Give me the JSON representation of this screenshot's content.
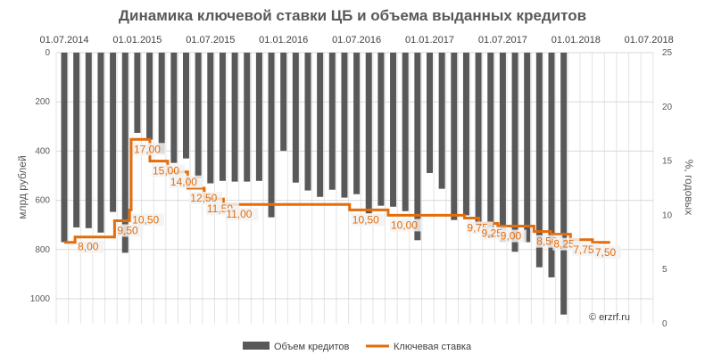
{
  "chart_data": {
    "type": "bar+line",
    "title": "Динамика ключевой ставки ЦБ и объема выданных кредитов",
    "x_ticks": [
      "01.07.2014",
      "01.01.2015",
      "01.07.2015",
      "01.01.2016",
      "01.07.2016",
      "01.01.2017",
      "01.07.2017",
      "01.01.2018",
      "01.07.2018"
    ],
    "xlim": [
      "2014-07-01",
      "2018-07-01"
    ],
    "left_axis": {
      "label": "млрд рублей",
      "ticks": [
        0,
        200,
        400,
        600,
        800,
        1000
      ],
      "ylim": [
        0,
        1100
      ],
      "reversed": true
    },
    "right_axis": {
      "label": "%, годовых",
      "ticks": [
        0,
        5,
        10,
        15,
        20,
        25
      ],
      "ylim": [
        0,
        25
      ]
    },
    "grid": true,
    "legend_position": "bottom",
    "series": [
      {
        "name": "Объем кредитов",
        "type": "bar",
        "color": "#595959",
        "start_month": "2014-07",
        "values": [
          770,
          710,
          713,
          731,
          647,
          813,
          326,
          354,
          409,
          448,
          430,
          511,
          531,
          521,
          524,
          524,
          521,
          669,
          399,
          528,
          560,
          586,
          557,
          589,
          575,
          653,
          622,
          626,
          644,
          762,
          489,
          553,
          680,
          661,
          703,
          752,
          769,
          809,
          770,
          872,
          913,
          1064
        ]
      },
      {
        "name": "Ключевая ставка",
        "type": "step-line",
        "color": "#E46C0A",
        "steps": [
          [
            "2014-07-01",
            7.5
          ],
          [
            "2014-07-28",
            8.0
          ],
          [
            "2014-11-05",
            9.5
          ],
          [
            "2014-12-12",
            10.5
          ],
          [
            "2014-12-16",
            17.0
          ],
          [
            "2015-02-02",
            15.0
          ],
          [
            "2015-03-16",
            14.0
          ],
          [
            "2015-05-05",
            12.5
          ],
          [
            "2015-06-16",
            11.5
          ],
          [
            "2015-08-03",
            11.0
          ],
          [
            "2016-06-14",
            10.5
          ],
          [
            "2016-09-19",
            10.0
          ],
          [
            "2017-03-27",
            9.75
          ],
          [
            "2017-05-02",
            9.25
          ],
          [
            "2017-06-19",
            9.0
          ],
          [
            "2017-09-18",
            8.5
          ],
          [
            "2017-10-30",
            8.25
          ],
          [
            "2017-12-18",
            7.75
          ],
          [
            "2018-02-12",
            7.5
          ]
        ],
        "end": "2018-03-26",
        "labels": [
          {
            "date": "2014-07-28",
            "value": 8.0,
            "text": "8,00"
          },
          {
            "date": "2014-11-05",
            "value": 9.5,
            "text": "9,50"
          },
          {
            "date": "2014-12-12",
            "value": 10.5,
            "text": "10,50"
          },
          {
            "date": "2014-12-16",
            "value": 17.0,
            "text": "17,00"
          },
          {
            "date": "2015-02-02",
            "value": 15.0,
            "text": "15,00"
          },
          {
            "date": "2015-03-16",
            "value": 14.0,
            "text": "14,00"
          },
          {
            "date": "2015-05-05",
            "value": 12.5,
            "text": "12,50"
          },
          {
            "date": "2015-06-16",
            "value": 11.5,
            "text": "11,50"
          },
          {
            "date": "2015-08-03",
            "value": 11.0,
            "text": "11,00"
          },
          {
            "date": "2016-06-14",
            "value": 10.5,
            "text": "10,50"
          },
          {
            "date": "2016-09-19",
            "value": 10.0,
            "text": "10,00"
          },
          {
            "date": "2017-03-27",
            "value": 9.75,
            "text": "9,75"
          },
          {
            "date": "2017-05-02",
            "value": 9.25,
            "text": "9,25"
          },
          {
            "date": "2017-06-19",
            "value": 9.0,
            "text": "9,00"
          },
          {
            "date": "2017-09-18",
            "value": 8.5,
            "text": "8,50"
          },
          {
            "date": "2017-10-30",
            "value": 8.25,
            "text": "8,25"
          },
          {
            "date": "2017-12-18",
            "value": 7.75,
            "text": "7,75"
          },
          {
            "date": "2018-02-12",
            "value": 7.5,
            "text": "7,50"
          }
        ]
      }
    ],
    "watermark": "© erzrf.ru"
  }
}
